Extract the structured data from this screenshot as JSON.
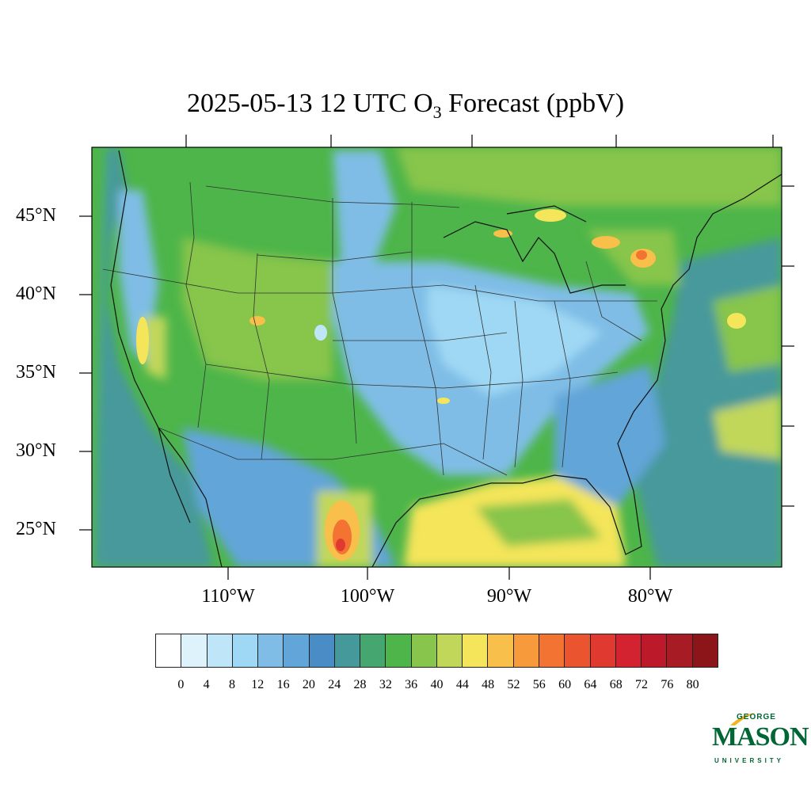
{
  "title": {
    "prefix": "2025-05-13 12 UTC O",
    "subscript": "3",
    "suffix": " Forecast (ppbV)"
  },
  "lat_labels": [
    "45°N",
    "40°N",
    "35°N",
    "30°N",
    "25°N"
  ],
  "lon_labels": [
    "110°W",
    "100°W",
    "90°W",
    "80°W"
  ],
  "colorbar": {
    "colors": [
      "#ffffff",
      "#def2fb",
      "#bee6f8",
      "#9fd8f4",
      "#7fbde6",
      "#62a5d8",
      "#4a8cc6",
      "#46999b",
      "#45a66f",
      "#4db549",
      "#87c54c",
      "#c1d75a",
      "#f4e55a",
      "#f8bf4a",
      "#f79a3c",
      "#f37333",
      "#ea552f",
      "#e0392f",
      "#d32230",
      "#bc1a2b",
      "#a71b24",
      "#8b1519"
    ],
    "labels": [
      "0",
      "4",
      "8",
      "12",
      "16",
      "20",
      "24",
      "28",
      "32",
      "36",
      "40",
      "44",
      "48",
      "52",
      "56",
      "60",
      "64",
      "68",
      "72",
      "76",
      "80"
    ]
  },
  "logo": {
    "line1": "GEORGE",
    "line2": "MASON",
    "line3": "UNIVERSITY",
    "color": "#006633",
    "accent": "#f2b51f"
  }
}
